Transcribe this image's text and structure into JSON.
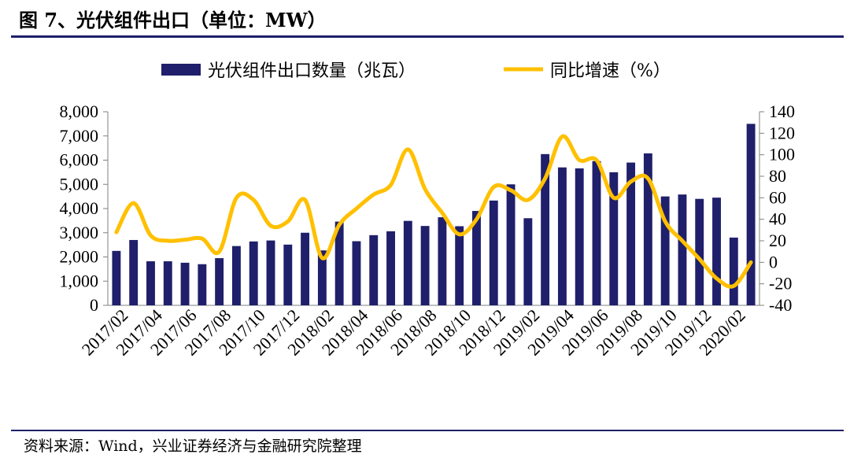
{
  "title": "图 7、光伏组件出口（单位：MW）",
  "source": "资料来源：Wind，兴业证券经济与金融研究院整理",
  "colors": {
    "bar": "#1f1f6b",
    "line": "#ffc000",
    "rule": "#1f1f6b"
  },
  "chart_data": {
    "type": "bar",
    "categories": [
      "2017/02",
      "2017/03",
      "2017/04",
      "2017/05",
      "2017/06",
      "2017/07",
      "2017/08",
      "2017/09",
      "2017/10",
      "2017/11",
      "2017/12",
      "2018/01",
      "2018/02",
      "2018/03",
      "2018/04",
      "2018/05",
      "2018/06",
      "2018/07",
      "2018/08",
      "2018/09",
      "2018/10",
      "2018/11",
      "2018/12",
      "2019/01",
      "2019/02",
      "2019/03",
      "2019/04",
      "2019/05",
      "2019/06",
      "2019/07",
      "2019/08",
      "2019/09",
      "2019/10",
      "2019/11",
      "2019/12",
      "2020/01",
      "2020/02",
      "2020/03"
    ],
    "x_tick_labels": [
      "2017/02",
      "2017/04",
      "2017/06",
      "2017/08",
      "2017/10",
      "2017/12",
      "2018/02",
      "2018/04",
      "2018/06",
      "2018/08",
      "2018/10",
      "2018/12",
      "2019/02",
      "2019/04",
      "2019/06",
      "2019/08",
      "2019/10",
      "2019/12",
      "2020/02"
    ],
    "series": [
      {
        "name": "光伏组件出口数量（兆瓦）",
        "type": "bar",
        "axis": "left",
        "values": [
          2250,
          2700,
          1820,
          1820,
          1760,
          1700,
          1950,
          2450,
          2640,
          2680,
          2510,
          3000,
          2270,
          3460,
          2650,
          2900,
          3060,
          3490,
          3280,
          3640,
          3270,
          3900,
          4330,
          5000,
          3600,
          6250,
          5700,
          5660,
          5960,
          5500,
          5900,
          6280,
          4500,
          4580,
          4400,
          4450,
          2800,
          7500
        ]
      },
      {
        "name": "同比增速（%）",
        "type": "line",
        "axis": "right",
        "values": [
          28,
          55,
          25,
          20,
          21,
          22,
          10,
          60,
          58,
          34,
          38,
          58,
          4,
          35,
          50,
          63,
          72,
          105,
          68,
          46,
          26,
          40,
          70,
          67,
          58,
          78,
          117,
          95,
          95,
          60,
          75,
          78,
          38,
          20,
          3,
          -15,
          -22,
          0
        ]
      }
    ],
    "left_axis": {
      "min": 0,
      "max": 8000,
      "ticks": [
        "0",
        "1,000",
        "2,000",
        "3,000",
        "4,000",
        "5,000",
        "6,000",
        "7,000",
        "8,000"
      ]
    },
    "right_axis": {
      "min": -40,
      "max": 140,
      "ticks": [
        "-40",
        "-20",
        "0",
        "20",
        "40",
        "60",
        "80",
        "100",
        "120",
        "140"
      ]
    },
    "legend_position": "top",
    "grid": false
  }
}
